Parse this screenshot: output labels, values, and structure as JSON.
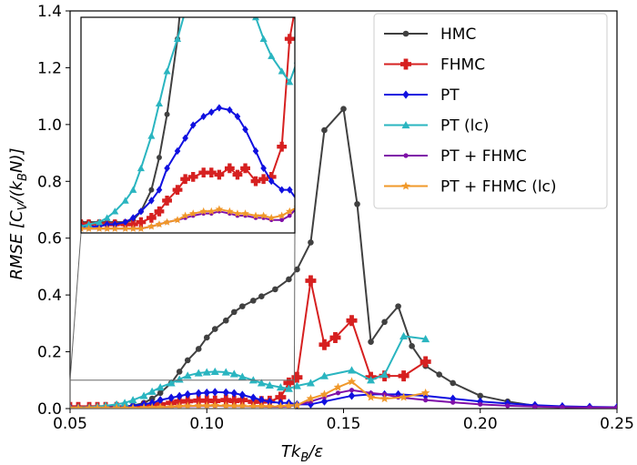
{
  "chart_data": {
    "type": "line",
    "xlabel_main": "Tk",
    "xlabel_sub": "B",
    "xlabel_tail": "/ε",
    "ylabel_main": "RMSE [C",
    "ylabel_sub1": "V",
    "ylabel_mid": "/(k",
    "ylabel_sub2": "B",
    "ylabel_tail": "N)]",
    "xlim": [
      0.05,
      0.25
    ],
    "ylim": [
      0.0,
      1.4
    ],
    "xticks": [
      "0.05",
      "0.10",
      "0.15",
      "0.20",
      "0.25"
    ],
    "xtick_values": [
      0.05,
      0.1,
      0.15,
      0.2,
      0.25
    ],
    "yticks": [
      "0.0",
      "0.2",
      "0.4",
      "0.6",
      "0.8",
      "1.0",
      "1.2",
      "1.4"
    ],
    "ytick_values": [
      0.0,
      0.2,
      0.4,
      0.6,
      0.8,
      1.0,
      1.2,
      1.4
    ],
    "legend_position": "upper-right",
    "inset": {
      "xlim": [
        0.05,
        0.132
      ],
      "ylim": [
        0.0,
        0.1
      ]
    },
    "series": [
      {
        "name": "HMC",
        "color": "#404040",
        "marker": "circle",
        "points": [
          [
            0.05,
            0.005
          ],
          [
            0.053,
            0.005
          ],
          [
            0.057,
            0.005
          ],
          [
            0.06,
            0.005
          ],
          [
            0.063,
            0.005
          ],
          [
            0.067,
            0.005
          ],
          [
            0.07,
            0.006
          ],
          [
            0.073,
            0.01
          ],
          [
            0.077,
            0.02
          ],
          [
            0.08,
            0.035
          ],
          [
            0.083,
            0.055
          ],
          [
            0.087,
            0.09
          ],
          [
            0.09,
            0.13
          ],
          [
            0.093,
            0.17
          ],
          [
            0.097,
            0.21
          ],
          [
            0.1,
            0.25
          ],
          [
            0.103,
            0.28
          ],
          [
            0.107,
            0.31
          ],
          [
            0.11,
            0.34
          ],
          [
            0.113,
            0.36
          ],
          [
            0.117,
            0.38
          ],
          [
            0.12,
            0.395
          ],
          [
            0.125,
            0.42
          ],
          [
            0.13,
            0.455
          ],
          [
            0.133,
            0.49
          ],
          [
            0.138,
            0.585
          ],
          [
            0.143,
            0.98
          ],
          [
            0.15,
            1.055
          ],
          [
            0.155,
            0.72
          ],
          [
            0.16,
            0.235
          ],
          [
            0.165,
            0.305
          ],
          [
            0.17,
            0.36
          ],
          [
            0.175,
            0.22
          ],
          [
            0.18,
            0.15
          ],
          [
            0.185,
            0.12
          ],
          [
            0.19,
            0.09
          ],
          [
            0.2,
            0.045
          ],
          [
            0.21,
            0.025
          ],
          [
            0.22,
            0.01
          ],
          [
            0.23,
            0.005
          ],
          [
            0.24,
            0.004
          ],
          [
            0.25,
            0.003
          ]
        ]
      },
      {
        "name": "FHMC",
        "color": "#d62020",
        "marker": "plus",
        "points": [
          [
            0.05,
            0.004
          ],
          [
            0.053,
            0.004
          ],
          [
            0.057,
            0.004
          ],
          [
            0.06,
            0.004
          ],
          [
            0.063,
            0.004
          ],
          [
            0.067,
            0.004
          ],
          [
            0.07,
            0.004
          ],
          [
            0.073,
            0.005
          ],
          [
            0.077,
            0.007
          ],
          [
            0.08,
            0.01
          ],
          [
            0.083,
            0.015
          ],
          [
            0.087,
            0.02
          ],
          [
            0.09,
            0.025
          ],
          [
            0.093,
            0.026
          ],
          [
            0.097,
            0.028
          ],
          [
            0.1,
            0.028
          ],
          [
            0.103,
            0.027
          ],
          [
            0.107,
            0.03
          ],
          [
            0.11,
            0.027
          ],
          [
            0.113,
            0.03
          ],
          [
            0.117,
            0.024
          ],
          [
            0.12,
            0.025
          ],
          [
            0.123,
            0.026
          ],
          [
            0.127,
            0.04
          ],
          [
            0.13,
            0.09
          ],
          [
            0.133,
            0.11
          ],
          [
            0.138,
            0.45
          ],
          [
            0.143,
            0.225
          ],
          [
            0.147,
            0.25
          ],
          [
            0.153,
            0.31
          ],
          [
            0.16,
            0.11
          ],
          [
            0.165,
            0.115
          ],
          [
            0.172,
            0.115
          ],
          [
            0.18,
            0.165
          ]
        ]
      },
      {
        "name": "PT",
        "color": "#1010e0",
        "marker": "diamond",
        "points": [
          [
            0.05,
            0.003
          ],
          [
            0.053,
            0.003
          ],
          [
            0.057,
            0.003
          ],
          [
            0.06,
            0.004
          ],
          [
            0.063,
            0.004
          ],
          [
            0.067,
            0.005
          ],
          [
            0.07,
            0.007
          ],
          [
            0.073,
            0.01
          ],
          [
            0.077,
            0.015
          ],
          [
            0.08,
            0.02
          ],
          [
            0.083,
            0.03
          ],
          [
            0.087,
            0.038
          ],
          [
            0.09,
            0.044
          ],
          [
            0.093,
            0.05
          ],
          [
            0.097,
            0.054
          ],
          [
            0.1,
            0.056
          ],
          [
            0.103,
            0.058
          ],
          [
            0.107,
            0.057
          ],
          [
            0.11,
            0.054
          ],
          [
            0.113,
            0.048
          ],
          [
            0.117,
            0.038
          ],
          [
            0.12,
            0.03
          ],
          [
            0.123,
            0.024
          ],
          [
            0.127,
            0.02
          ],
          [
            0.13,
            0.02
          ],
          [
            0.133,
            0.015
          ],
          [
            0.138,
            0.015
          ],
          [
            0.143,
            0.025
          ],
          [
            0.153,
            0.045
          ],
          [
            0.16,
            0.05
          ],
          [
            0.165,
            0.05
          ],
          [
            0.17,
            0.05
          ],
          [
            0.18,
            0.045
          ],
          [
            0.19,
            0.035
          ],
          [
            0.2,
            0.025
          ],
          [
            0.21,
            0.018
          ],
          [
            0.22,
            0.012
          ],
          [
            0.23,
            0.008
          ],
          [
            0.24,
            0.006
          ],
          [
            0.25,
            0.005
          ]
        ]
      },
      {
        "name": "PT (lc)",
        "color": "#2ab5c0",
        "marker": "triangle",
        "points": [
          [
            0.05,
            0.003
          ],
          [
            0.053,
            0.004
          ],
          [
            0.057,
            0.005
          ],
          [
            0.06,
            0.007
          ],
          [
            0.063,
            0.01
          ],
          [
            0.067,
            0.015
          ],
          [
            0.07,
            0.02
          ],
          [
            0.073,
            0.03
          ],
          [
            0.077,
            0.045
          ],
          [
            0.08,
            0.06
          ],
          [
            0.083,
            0.075
          ],
          [
            0.087,
            0.09
          ],
          [
            0.09,
            0.103
          ],
          [
            0.093,
            0.116
          ],
          [
            0.097,
            0.125
          ],
          [
            0.1,
            0.128
          ],
          [
            0.103,
            0.13
          ],
          [
            0.107,
            0.128
          ],
          [
            0.11,
            0.122
          ],
          [
            0.113,
            0.112
          ],
          [
            0.117,
            0.1
          ],
          [
            0.12,
            0.09
          ],
          [
            0.123,
            0.082
          ],
          [
            0.127,
            0.075
          ],
          [
            0.13,
            0.07
          ],
          [
            0.133,
            0.08
          ],
          [
            0.138,
            0.09
          ],
          [
            0.143,
            0.115
          ],
          [
            0.153,
            0.135
          ],
          [
            0.16,
            0.1
          ],
          [
            0.165,
            0.12
          ],
          [
            0.172,
            0.255
          ],
          [
            0.18,
            0.245
          ]
        ]
      },
      {
        "name": "PT + FHMC",
        "color": "#7f0fa8",
        "marker": "smallcircle",
        "points": [
          [
            0.05,
            0.002
          ],
          [
            0.053,
            0.002
          ],
          [
            0.057,
            0.002
          ],
          [
            0.06,
            0.002
          ],
          [
            0.063,
            0.002
          ],
          [
            0.067,
            0.002
          ],
          [
            0.07,
            0.002
          ],
          [
            0.073,
            0.002
          ],
          [
            0.077,
            0.003
          ],
          [
            0.08,
            0.004
          ],
          [
            0.083,
            0.005
          ],
          [
            0.087,
            0.006
          ],
          [
            0.09,
            0.007
          ],
          [
            0.093,
            0.008
          ],
          [
            0.097,
            0.009
          ],
          [
            0.1,
            0.009
          ],
          [
            0.103,
            0.01
          ],
          [
            0.107,
            0.009
          ],
          [
            0.11,
            0.008
          ],
          [
            0.113,
            0.008
          ],
          [
            0.117,
            0.007
          ],
          [
            0.12,
            0.007
          ],
          [
            0.123,
            0.006
          ],
          [
            0.127,
            0.006
          ],
          [
            0.13,
            0.008
          ],
          [
            0.133,
            0.012
          ],
          [
            0.138,
            0.025
          ],
          [
            0.143,
            0.04
          ],
          [
            0.148,
            0.055
          ],
          [
            0.153,
            0.065
          ],
          [
            0.16,
            0.055
          ],
          [
            0.165,
            0.05
          ],
          [
            0.17,
            0.04
          ],
          [
            0.18,
            0.03
          ],
          [
            0.19,
            0.022
          ],
          [
            0.2,
            0.015
          ],
          [
            0.21,
            0.01
          ],
          [
            0.22,
            0.007
          ],
          [
            0.23,
            0.005
          ],
          [
            0.24,
            0.004
          ],
          [
            0.25,
            0.004
          ]
        ]
      },
      {
        "name": "PT + FHMC (lc)",
        "color": "#f0982a",
        "marker": "star",
        "points": [
          [
            0.05,
            0.002
          ],
          [
            0.053,
            0.002
          ],
          [
            0.057,
            0.002
          ],
          [
            0.06,
            0.002
          ],
          [
            0.063,
            0.002
          ],
          [
            0.067,
            0.002
          ],
          [
            0.07,
            0.002
          ],
          [
            0.073,
            0.002
          ],
          [
            0.077,
            0.003
          ],
          [
            0.08,
            0.004
          ],
          [
            0.083,
            0.005
          ],
          [
            0.087,
            0.006
          ],
          [
            0.09,
            0.008
          ],
          [
            0.093,
            0.009
          ],
          [
            0.097,
            0.01
          ],
          [
            0.1,
            0.01
          ],
          [
            0.103,
            0.011
          ],
          [
            0.107,
            0.01
          ],
          [
            0.11,
            0.009
          ],
          [
            0.113,
            0.009
          ],
          [
            0.117,
            0.008
          ],
          [
            0.12,
            0.008
          ],
          [
            0.123,
            0.007
          ],
          [
            0.127,
            0.008
          ],
          [
            0.13,
            0.01
          ],
          [
            0.133,
            0.012
          ],
          [
            0.138,
            0.035
          ],
          [
            0.143,
            0.05
          ],
          [
            0.148,
            0.075
          ],
          [
            0.153,
            0.095
          ],
          [
            0.16,
            0.04
          ],
          [
            0.165,
            0.035
          ],
          [
            0.172,
            0.04
          ],
          [
            0.18,
            0.055
          ]
        ]
      }
    ]
  }
}
